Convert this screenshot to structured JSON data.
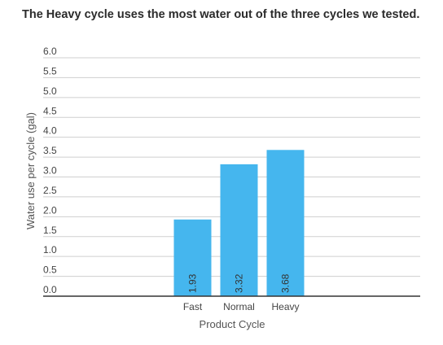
{
  "chart_data": {
    "type": "bar",
    "title": "The Heavy cycle uses the most water out of the three cycles we tested.",
    "xlabel": "Product Cycle",
    "ylabel": "Water use per cycle (gal)",
    "categories": [
      "Fast",
      "Normal",
      "Heavy"
    ],
    "values": [
      1.93,
      3.32,
      3.68
    ],
    "value_labels": [
      "1.93",
      "3.32",
      "3.68"
    ],
    "ylim": [
      0,
      6
    ],
    "yticks": [
      "0.0",
      "0.5",
      "1.0",
      "1.5",
      "2.0",
      "2.5",
      "3.0",
      "3.5",
      "4.0",
      "4.5",
      "5.0",
      "5.5",
      "6.0"
    ],
    "bar_color": "#45b6ee",
    "grid": true,
    "legend": "none"
  }
}
